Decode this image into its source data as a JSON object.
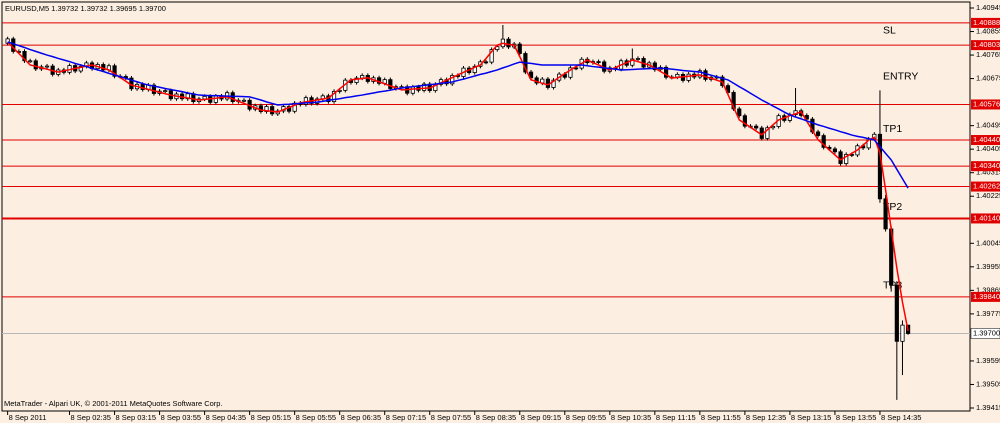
{
  "chart_data": {
    "type": "candlestick",
    "title": "EURUSD,M5  1.39732 1.39732 1.39695 1.39700",
    "footer": "MetaTrader - Alpari UK, © 2001-2011 MetaQuotes Software Corp.",
    "background": "#fcefe1",
    "up_color": "#ffffff",
    "down_color": "#000000",
    "wick_color": "#000000",
    "xlim": [
      -1,
      171
    ],
    "ylim": [
      1.39415,
      1.40945
    ],
    "xticks": [
      {
        "value": 0,
        "label": "8 Sep 2011"
      },
      {
        "value": 11,
        "label": "8 Sep 02:35"
      },
      {
        "value": 19,
        "label": "8 Sep 03:15"
      },
      {
        "value": 27,
        "label": "8 Sep 03:55"
      },
      {
        "value": 35,
        "label": "8 Sep 04:35"
      },
      {
        "value": 43,
        "label": "8 Sep 05:15"
      },
      {
        "value": 51,
        "label": "8 Sep 05:55"
      },
      {
        "value": 59,
        "label": "8 Sep 06:35"
      },
      {
        "value": 67,
        "label": "8 Sep 07:15"
      },
      {
        "value": 75,
        "label": "8 Sep 07:55"
      },
      {
        "value": 83,
        "label": "8 Sep 08:35"
      },
      {
        "value": 91,
        "label": "8 Sep 09:15"
      },
      {
        "value": 99,
        "label": "8 Sep 09:55"
      },
      {
        "value": 107,
        "label": "8 Sep 10:35"
      },
      {
        "value": 115,
        "label": "8 Sep 11:15"
      },
      {
        "value": 123,
        "label": "8 Sep 11:55"
      },
      {
        "value": 131,
        "label": "8 Sep 12:35"
      },
      {
        "value": 139,
        "label": "8 Sep 13:15"
      },
      {
        "value": 147,
        "label": "8 Sep 13:55"
      },
      {
        "value": 155,
        "label": "8 Sep 14:35"
      }
    ],
    "yticks": [
      1.40945,
      1.40855,
      1.40765,
      1.40675,
      1.40495,
      1.40405,
      1.40315,
      1.40225,
      1.40045,
      1.39955,
      1.39865,
      1.39775,
      1.39595,
      1.39505,
      1.39415
    ],
    "levels": [
      {
        "name": "SL",
        "value": 1.40888,
        "label": "1.40888"
      },
      {
        "value": 1.40803,
        "label": "1.40803"
      },
      {
        "name": "ENTRY",
        "value": 1.40576,
        "label": "1.40576"
      },
      {
        "name": "TP1",
        "value": 1.4044,
        "label": "1.40440"
      },
      {
        "value": 1.4034,
        "label": "1.40340"
      },
      {
        "value": 1.40262,
        "label": "1.40262"
      },
      {
        "name": "TP2",
        "value": 1.4014,
        "label": "1.40140",
        "line_width": 2
      },
      {
        "name": "TP3",
        "value": 1.3984,
        "label": "1.39840"
      }
    ],
    "level_color": "#e00000",
    "current": {
      "value": 1.397,
      "label": "1.39700",
      "color": "#b8b8b8"
    },
    "open": [
      1.4081,
      1.40827,
      1.40779,
      1.40779,
      1.40743,
      1.40743,
      1.40712,
      1.4072,
      1.40723,
      1.40691,
      1.40708,
      1.40699,
      1.40725,
      1.40704,
      1.40722,
      1.40735,
      1.40713,
      1.40729,
      1.40708,
      1.40724,
      1.40684,
      1.40683,
      1.40677,
      1.40636,
      1.40653,
      1.40633,
      1.4065,
      1.40618,
      1.40627,
      1.40629,
      1.40598,
      1.40616,
      1.40598,
      1.40617,
      1.40587,
      1.40597,
      1.40607,
      1.40584,
      1.40608,
      1.40597,
      1.40621,
      1.40587,
      1.40592,
      1.40592,
      1.40558,
      1.40571,
      1.40549,
      1.40568,
      1.4054,
      1.40551,
      1.40568,
      1.4055,
      1.40581,
      1.40576,
      1.40602,
      1.4058,
      1.40597,
      1.40609,
      1.40587,
      1.40626,
      1.4063,
      1.40669,
      1.4066,
      1.40677,
      1.40687,
      1.40664,
      1.40678,
      1.40657,
      1.40671,
      1.40637,
      1.40644,
      1.40644,
      1.40619,
      1.40643,
      1.4063,
      1.40654,
      1.40629,
      1.40653,
      1.40671,
      1.40655,
      1.40687,
      1.40683,
      1.40715,
      1.40698,
      1.40722,
      1.40739,
      1.40738,
      1.40786,
      1.40797,
      1.40826,
      1.40796,
      1.40807,
      1.40771,
      1.407,
      1.40678,
      1.40658,
      1.40673,
      1.40641,
      1.40669,
      1.40692,
      1.4068,
      1.40716,
      1.40715,
      1.40749,
      1.40736,
      1.4074,
      1.40739,
      1.40703,
      1.40716,
      1.40711,
      1.40743,
      1.40726,
      1.4075,
      1.40752,
      1.40719,
      1.40735,
      1.40709,
      1.40718,
      1.4068,
      1.40681,
      1.40691,
      1.40668,
      1.40692,
      1.40681,
      1.40705,
      1.40672,
      1.4068,
      1.40681,
      1.40648,
      1.40622,
      1.40559,
      1.40533,
      1.40493,
      1.40493,
      1.40486,
      1.40446,
      1.40487,
      1.40492,
      1.40533,
      1.40515,
      1.40537,
      1.40552,
      1.40534,
      1.4052,
      1.40471,
      1.40457,
      1.40412,
      1.40406,
      1.40395,
      1.4035,
      1.40385,
      1.40383,
      1.40418,
      1.4041,
      1.40444,
      1.40462,
      1.40215,
      1.401,
      1.39885,
      1.3967,
      1.39732
    ],
    "high": [
      1.40835,
      1.40835,
      1.40787,
      1.40787,
      1.40751,
      1.40751,
      1.40728,
      1.40731,
      1.40731,
      1.40716,
      1.40716,
      1.40733,
      1.40733,
      1.4073,
      1.40743,
      1.40743,
      1.40737,
      1.40737,
      1.40732,
      1.40732,
      1.40692,
      1.40691,
      1.40685,
      1.40661,
      1.40661,
      1.40658,
      1.40658,
      1.40635,
      1.40637,
      1.40637,
      1.40624,
      1.40624,
      1.40625,
      1.40625,
      1.40605,
      1.40615,
      1.40615,
      1.40616,
      1.40616,
      1.40629,
      1.40629,
      1.406,
      1.406,
      1.406,
      1.40579,
      1.40579,
      1.40576,
      1.40576,
      1.40559,
      1.40576,
      1.40576,
      1.40589,
      1.40589,
      1.4061,
      1.4061,
      1.40605,
      1.40617,
      1.40617,
      1.40634,
      1.40638,
      1.40677,
      1.40677,
      1.40685,
      1.40695,
      1.40695,
      1.40686,
      1.40686,
      1.40679,
      1.40679,
      1.40652,
      1.40652,
      1.40652,
      1.40651,
      1.40651,
      1.40662,
      1.40662,
      1.40661,
      1.40679,
      1.40679,
      1.40695,
      1.40695,
      1.40723,
      1.40723,
      1.4073,
      1.40747,
      1.40747,
      1.40794,
      1.40805,
      1.4088,
      1.40834,
      1.40815,
      1.40815,
      1.40779,
      1.40708,
      1.40686,
      1.40681,
      1.40681,
      1.40677,
      1.407,
      1.407,
      1.40724,
      1.40724,
      1.40757,
      1.40757,
      1.40748,
      1.40748,
      1.40747,
      1.40724,
      1.40724,
      1.40751,
      1.40751,
      1.4079,
      1.4076,
      1.4076,
      1.40743,
      1.40743,
      1.40726,
      1.40726,
      1.40689,
      1.40699,
      1.40699,
      1.407,
      1.407,
      1.40713,
      1.40713,
      1.40688,
      1.40689,
      1.40689,
      1.40656,
      1.4063,
      1.40567,
      1.40541,
      1.40501,
      1.40501,
      1.40494,
      1.40495,
      1.405,
      1.40541,
      1.40541,
      1.40545,
      1.40639,
      1.4056,
      1.40542,
      1.40528,
      1.40479,
      1.40465,
      1.4042,
      1.40414,
      1.40403,
      1.40393,
      1.40393,
      1.40426,
      1.40426,
      1.40452,
      1.4047,
      1.4063,
      1.4023,
      1.4011,
      1.399,
      1.3975,
      1.39732
    ],
    "low": [
      1.40802,
      1.40771,
      1.40771,
      1.40735,
      1.40735,
      1.40704,
      1.40704,
      1.40712,
      1.40683,
      1.40683,
      1.40691,
      1.40691,
      1.40696,
      1.40696,
      1.40714,
      1.40705,
      1.40705,
      1.407,
      1.407,
      1.40676,
      1.40675,
      1.40669,
      1.40628,
      1.40628,
      1.40625,
      1.40625,
      1.4061,
      1.4061,
      1.40619,
      1.4059,
      1.4059,
      1.4059,
      1.4059,
      1.40579,
      1.40579,
      1.40589,
      1.40576,
      1.40576,
      1.40589,
      1.40589,
      1.40579,
      1.40579,
      1.40584,
      1.4055,
      1.4055,
      1.40541,
      1.40541,
      1.40532,
      1.40532,
      1.40543,
      1.40542,
      1.40542,
      1.40568,
      1.40568,
      1.40572,
      1.40572,
      1.40589,
      1.40579,
      1.40579,
      1.40618,
      1.40622,
      1.40652,
      1.40652,
      1.40669,
      1.40656,
      1.40656,
      1.40649,
      1.40649,
      1.40629,
      1.40629,
      1.40636,
      1.40611,
      1.40611,
      1.40622,
      1.40622,
      1.40621,
      1.40621,
      1.40645,
      1.40647,
      1.40647,
      1.40675,
      1.40675,
      1.4069,
      1.4069,
      1.40714,
      1.4073,
      1.4073,
      1.40778,
      1.40789,
      1.40788,
      1.40788,
      1.40763,
      1.40692,
      1.4067,
      1.4065,
      1.4065,
      1.40633,
      1.40633,
      1.40661,
      1.40672,
      1.40672,
      1.40707,
      1.40707,
      1.40728,
      1.40728,
      1.40731,
      1.40695,
      1.40695,
      1.40703,
      1.40703,
      1.40718,
      1.40718,
      1.40742,
      1.40711,
      1.40711,
      1.40701,
      1.40701,
      1.40672,
      1.40672,
      1.40673,
      1.4066,
      1.4066,
      1.40673,
      1.40673,
      1.40664,
      1.40664,
      1.40672,
      1.4064,
      1.40614,
      1.40551,
      1.40525,
      1.40485,
      1.40485,
      1.40478,
      1.40438,
      1.40438,
      1.40479,
      1.40484,
      1.40507,
      1.40507,
      1.40529,
      1.40526,
      1.40512,
      1.40463,
      1.40449,
      1.40404,
      1.40398,
      1.40387,
      1.40342,
      1.40342,
      1.40375,
      1.40375,
      1.40402,
      1.40402,
      1.40436,
      1.402,
      1.4009,
      1.3986,
      1.39446,
      1.39541,
      1.39695
    ],
    "close": [
      1.40827,
      1.40779,
      1.40779,
      1.40743,
      1.40743,
      1.40712,
      1.4072,
      1.40723,
      1.40691,
      1.40708,
      1.40699,
      1.40725,
      1.40704,
      1.40722,
      1.40735,
      1.40713,
      1.40729,
      1.40708,
      1.40724,
      1.40684,
      1.40683,
      1.40677,
      1.40636,
      1.40653,
      1.40633,
      1.4065,
      1.40618,
      1.40627,
      1.40629,
      1.40598,
      1.40616,
      1.40598,
      1.40617,
      1.40587,
      1.40597,
      1.40607,
      1.40584,
      1.40608,
      1.40597,
      1.40621,
      1.40587,
      1.40592,
      1.40592,
      1.40558,
      1.40571,
      1.40549,
      1.40568,
      1.4054,
      1.40551,
      1.40568,
      1.4055,
      1.40581,
      1.40576,
      1.40602,
      1.4058,
      1.40597,
      1.40609,
      1.40587,
      1.40626,
      1.4063,
      1.40669,
      1.4066,
      1.40677,
      1.40687,
      1.40664,
      1.40678,
      1.40657,
      1.40671,
      1.40637,
      1.40644,
      1.40644,
      1.40619,
      1.40643,
      1.4063,
      1.40654,
      1.40629,
      1.40653,
      1.40671,
      1.40655,
      1.40687,
      1.40683,
      1.40715,
      1.40698,
      1.40722,
      1.40739,
      1.40738,
      1.40786,
      1.40797,
      1.40826,
      1.40796,
      1.40807,
      1.40771,
      1.407,
      1.40678,
      1.40658,
      1.40673,
      1.40641,
      1.40669,
      1.40692,
      1.4068,
      1.40716,
      1.40715,
      1.40749,
      1.40736,
      1.4074,
      1.40739,
      1.40703,
      1.40716,
      1.40711,
      1.40743,
      1.40726,
      1.4075,
      1.40752,
      1.40719,
      1.40735,
      1.40709,
      1.40718,
      1.4068,
      1.40681,
      1.40691,
      1.40668,
      1.40692,
      1.40681,
      1.40705,
      1.40672,
      1.4068,
      1.40681,
      1.40648,
      1.40622,
      1.40559,
      1.40533,
      1.40493,
      1.40493,
      1.40486,
      1.40446,
      1.40487,
      1.40492,
      1.40533,
      1.40515,
      1.40537,
      1.40552,
      1.40534,
      1.4052,
      1.40471,
      1.40457,
      1.40412,
      1.40406,
      1.40395,
      1.4035,
      1.40385,
      1.40383,
      1.40418,
      1.4041,
      1.40444,
      1.40462,
      1.40215,
      1.401,
      1.39885,
      1.3967,
      1.39732,
      1.397
    ],
    "lines": [
      {
        "color": "#ff0000",
        "values": [
          1.40815,
          1.40793,
          1.40771,
          1.40749,
          1.40727,
          1.40722,
          1.40716,
          1.40711,
          1.40705,
          1.407,
          1.40705,
          1.40709,
          1.40714,
          1.40718,
          1.40723,
          1.40727,
          1.40721,
          1.40714,
          1.40708,
          1.40694,
          1.40679,
          1.40665,
          1.4065,
          1.40645,
          1.40639,
          1.40634,
          1.40628,
          1.40623,
          1.40617,
          1.40612,
          1.40608,
          1.40604,
          1.40601,
          1.40597,
          1.40593,
          1.40595,
          1.40598,
          1.406,
          1.40603,
          1.40605,
          1.40597,
          1.40588,
          1.4058,
          1.40572,
          1.40563,
          1.40555,
          1.40552,
          1.4055,
          1.40547,
          1.40556,
          1.40564,
          1.40573,
          1.40582,
          1.40586,
          1.4059,
          1.40593,
          1.40597,
          1.40601,
          1.40618,
          1.40636,
          1.40653,
          1.4067,
          1.40673,
          1.40675,
          1.40678,
          1.4067,
          1.40663,
          1.40655,
          1.40647,
          1.4064,
          1.40632,
          1.40633,
          1.40635,
          1.40636,
          1.40638,
          1.40639,
          1.40649,
          1.40659,
          1.40669,
          1.40679,
          1.40689,
          1.40699,
          1.40708,
          1.40718,
          1.40727,
          1.40752,
          1.40778,
          1.40803,
          1.4081,
          1.40806,
          1.40803,
          1.40759,
          1.40714,
          1.4067,
          1.40664,
          1.40657,
          1.40651,
          1.40665,
          1.4068,
          1.40694,
          1.40708,
          1.40721,
          1.40733,
          1.40746,
          1.40736,
          1.40727,
          1.40717,
          1.40708,
          1.40717,
          1.40727,
          1.40736,
          1.40746,
          1.4074,
          1.40733,
          1.40727,
          1.40715,
          1.40702,
          1.4069,
          1.40677,
          1.40679,
          1.40682,
          1.40684,
          1.40687,
          1.40689,
          1.40682,
          1.40676,
          1.40669,
          1.40662,
          1.40614,
          1.40565,
          1.40517,
          1.40503,
          1.40489,
          1.40474,
          1.4046,
          1.40479,
          1.40498,
          1.40517,
          1.40525,
          1.40533,
          1.4054,
          1.40548,
          1.40512,
          1.40477,
          1.40441,
          1.40422,
          1.40402,
          1.40383,
          1.40364,
          1.40377,
          1.40389,
          1.40402,
          1.4042,
          1.4044,
          1.4045,
          1.4039,
          1.4025,
          1.401,
          1.3995,
          1.3982,
          1.3971
        ]
      },
      {
        "color": "#0000ee",
        "values": [
          1.40815,
          1.40808,
          1.40801,
          1.40794,
          1.40786,
          1.40779,
          1.40772,
          1.40765,
          1.40759,
          1.40752,
          1.40746,
          1.4074,
          1.40733,
          1.40727,
          1.40721,
          1.40714,
          1.40708,
          1.40702,
          1.40695,
          1.40689,
          1.40682,
          1.40676,
          1.40669,
          1.40663,
          1.40656,
          1.4065,
          1.40646,
          1.40642,
          1.40637,
          1.40633,
          1.40629,
          1.40625,
          1.4062,
          1.40616,
          1.40612,
          1.40611,
          1.4061,
          1.4061,
          1.40609,
          1.40608,
          1.40607,
          1.40607,
          1.40606,
          1.40605,
          1.40599,
          1.40593,
          1.40586,
          1.4058,
          1.40574,
          1.40576,
          1.40577,
          1.40579,
          1.4058,
          1.40582,
          1.40583,
          1.40585,
          1.40588,
          1.40592,
          1.40595,
          1.40598,
          1.40602,
          1.40605,
          1.40609,
          1.40612,
          1.40616,
          1.4062,
          1.40624,
          1.40627,
          1.40631,
          1.40635,
          1.40639,
          1.40642,
          1.40644,
          1.40647,
          1.40649,
          1.40652,
          1.40654,
          1.40657,
          1.40659,
          1.40662,
          1.40668,
          1.40673,
          1.40679,
          1.40685,
          1.40691,
          1.40696,
          1.40702,
          1.40708,
          1.40716,
          1.40723,
          1.40731,
          1.40738,
          1.40735,
          1.40733,
          1.4073,
          1.40727,
          1.40727,
          1.40727,
          1.40727,
          1.40727,
          1.40727,
          1.40727,
          1.40727,
          1.40724,
          1.40721,
          1.40719,
          1.40716,
          1.40713,
          1.40711,
          1.40708,
          1.40709,
          1.4071,
          1.40711,
          1.40712,
          1.40713,
          1.40714,
          1.40715,
          1.40713,
          1.40711,
          1.40709,
          1.40706,
          1.40704,
          1.40702,
          1.407,
          1.40694,
          1.40688,
          1.40682,
          1.40676,
          1.4067,
          1.40657,
          1.40644,
          1.40632,
          1.40619,
          1.40606,
          1.40593,
          1.40582,
          1.4057,
          1.40559,
          1.40547,
          1.40536,
          1.40528,
          1.40521,
          1.40513,
          1.40506,
          1.40498,
          1.40492,
          1.40485,
          1.40479,
          1.40472,
          1.40466,
          1.40459,
          1.40454,
          1.4045,
          1.40445,
          1.4044,
          1.40415,
          1.40389,
          1.40364,
          1.40328,
          1.40292,
          1.40256
        ]
      }
    ]
  }
}
